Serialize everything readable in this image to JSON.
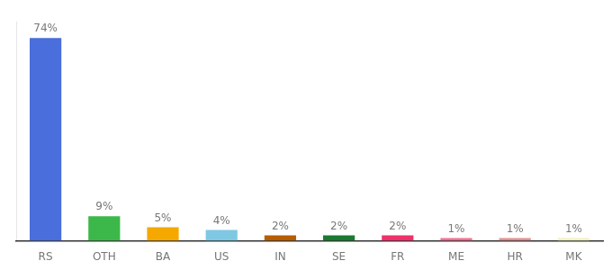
{
  "chart_data": {
    "type": "bar",
    "categories": [
      "RS",
      "OTH",
      "BA",
      "US",
      "IN",
      "SE",
      "FR",
      "ME",
      "HR",
      "MK"
    ],
    "values": [
      74,
      9,
      5,
      4,
      2,
      2,
      2,
      1,
      1,
      1
    ],
    "value_labels": [
      "74%",
      "9%",
      "5%",
      "4%",
      "2%",
      "2%",
      "2%",
      "1%",
      "1%",
      "1%"
    ],
    "data_labels": true,
    "colors": [
      "#4a6edb",
      "#3cb84a",
      "#f5a800",
      "#7ec8e3",
      "#b85c00",
      "#1a7a30",
      "#f0306a",
      "#f07090",
      "#e09090",
      "#f0f0c0"
    ],
    "ylim": [
      0,
      80
    ],
    "yticks": [],
    "tick_labels": "x",
    "grid": false
  }
}
